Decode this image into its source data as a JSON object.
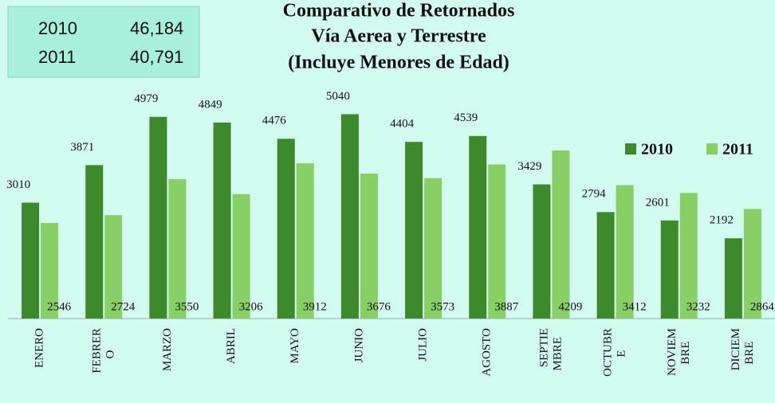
{
  "chart_data": {
    "type": "bar",
    "title": [
      "Comparativo de Retornados",
      "Vía Aerea y Terrestre",
      "(Incluye Menores de Edad)"
    ],
    "totals": [
      [
        "2010",
        "46,184"
      ],
      [
        "2011",
        "40,791"
      ]
    ],
    "categories": [
      "ENERO",
      "FEBRERO",
      "MARZO",
      "ABRIL",
      "MAYO",
      "JUNIO",
      "JULIO",
      "AGOSTO",
      "SEPTIEMBRE",
      "OCTUBRE",
      "NOVIEMBRE",
      "DICIEMBRE"
    ],
    "series": [
      {
        "name": "2010",
        "color": "#3d8a2c",
        "values": [
          3010,
          3871,
          4979,
          4849,
          4476,
          5040,
          4404,
          4539,
          3429,
          2794,
          2601,
          2192
        ]
      },
      {
        "name": "2011",
        "color": "#88cf66",
        "values": [
          2546,
          2724,
          3550,
          3206,
          3912,
          3676,
          3573,
          3887,
          4209,
          3412,
          3232,
          2864
        ]
      }
    ],
    "ylim": [
      350,
      5650
    ],
    "legend": "right"
  }
}
